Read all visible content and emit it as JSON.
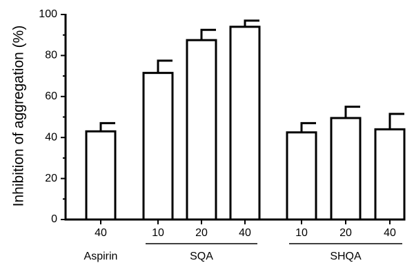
{
  "chart_data": {
    "type": "bar",
    "ylabel": "Inhibition of aggregation (%)",
    "xlabel": "",
    "ylim": [
      0,
      100
    ],
    "yticks": [
      0,
      20,
      40,
      60,
      80,
      100
    ],
    "grid": false,
    "categories": [
      "40",
      "10",
      "20",
      "40",
      "10",
      "20",
      "40"
    ],
    "values": [
      43,
      71.5,
      87.5,
      94,
      42.5,
      49.5,
      44
    ],
    "errors": [
      4,
      6,
      5,
      3,
      4.5,
      5.5,
      7.5
    ],
    "groups": [
      {
        "label": "Aspirin",
        "start": 0,
        "end": 0,
        "underline": false
      },
      {
        "label": "SQA",
        "start": 1,
        "end": 3,
        "underline": true
      },
      {
        "label": "SHQA",
        "start": 4,
        "end": 6,
        "underline": true
      }
    ],
    "colors": {
      "bar_fill": "#ffffff",
      "stroke": "#000000"
    }
  }
}
